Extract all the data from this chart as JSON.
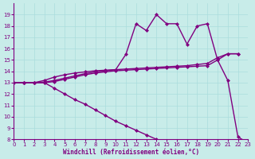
{
  "xlabel": "Windchill (Refroidissement éolien,°C)",
  "line1_x": [
    0,
    1,
    2,
    3,
    4,
    5,
    6,
    7,
    8,
    9,
    10,
    11,
    12,
    13,
    14,
    15,
    16,
    17,
    18,
    19,
    20,
    21,
    22
  ],
  "line1_y": [
    13,
    13,
    13,
    13,
    13.1,
    13.3,
    13.5,
    13.7,
    13.85,
    13.95,
    14.05,
    14.1,
    14.15,
    14.2,
    14.25,
    14.3,
    14.35,
    14.4,
    14.45,
    14.5,
    15.0,
    15.55,
    15.55
  ],
  "line2_x": [
    0,
    1,
    2,
    3,
    4,
    5,
    6,
    7,
    8,
    9,
    10,
    11,
    12,
    13,
    14,
    15,
    16,
    17,
    18,
    19,
    20,
    21,
    22
  ],
  "line2_y": [
    13,
    13,
    13,
    13.05,
    13.2,
    13.4,
    13.6,
    13.8,
    13.95,
    14.05,
    14.15,
    14.2,
    14.25,
    14.3,
    14.35,
    14.4,
    14.45,
    14.5,
    14.6,
    14.7,
    15.2,
    15.55,
    15.55
  ],
  "line3_x": [
    0,
    1,
    2,
    3,
    4,
    5,
    6,
    7,
    8,
    9,
    10,
    11,
    12,
    13,
    14,
    15,
    16,
    17,
    18,
    19,
    20
  ],
  "line3_y": [
    13,
    13,
    13,
    13.2,
    13.5,
    13.7,
    13.85,
    13.95,
    14.05,
    14.1,
    14.15,
    15.5,
    18.2,
    17.6,
    19.0,
    18.2,
    18.2,
    16.4,
    18.0,
    18.2,
    15.0
  ],
  "line4_x": [
    0,
    1,
    2,
    3,
    4,
    5,
    6,
    7,
    8,
    9,
    10,
    11,
    12,
    13,
    14
  ],
  "line4_y": [
    13,
    13,
    13,
    13,
    12.5,
    12.0,
    11.5,
    11.1,
    10.6,
    10.1,
    9.6,
    9.2,
    8.8,
    8.4,
    8.0
  ],
  "line5_x": [
    20,
    21,
    22,
    23
  ],
  "line5_y": [
    15.0,
    13.2,
    8.2,
    7.7
  ],
  "bg_color": "#c8ece9",
  "line_color": "#800080",
  "grid_color": "#aadddd",
  "ylim": [
    8,
    20
  ],
  "xlim": [
    0,
    23
  ],
  "yticks": [
    8,
    9,
    10,
    11,
    12,
    13,
    14,
    15,
    16,
    17,
    18,
    19
  ],
  "xticks": [
    0,
    1,
    2,
    3,
    4,
    5,
    6,
    7,
    8,
    9,
    10,
    11,
    12,
    13,
    14,
    15,
    16,
    17,
    18,
    19,
    20,
    21,
    22,
    23
  ]
}
